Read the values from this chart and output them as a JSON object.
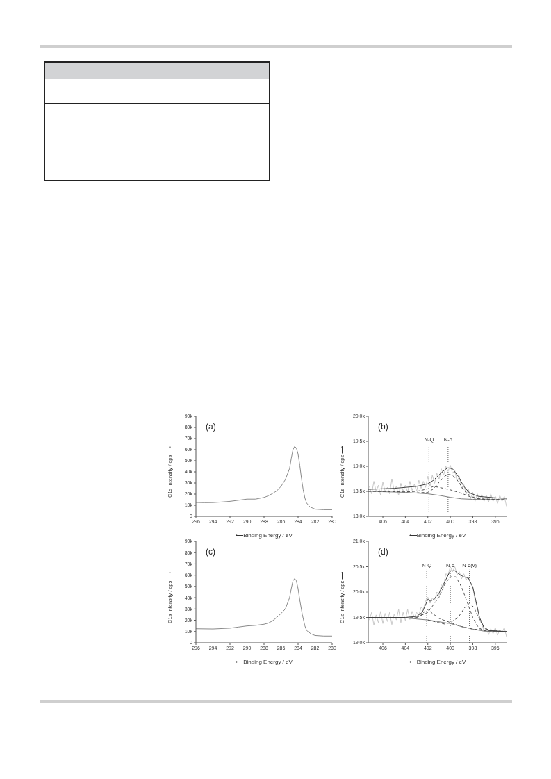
{
  "chart_data": [
    {
      "type": "line",
      "annotations": [
        "(a)"
      ],
      "xlabel": "⟵Binding Energy / eV",
      "ylabel": "C1s Intensity / cps ⟶",
      "xlim": [
        296,
        280
      ],
      "xticks": [
        296,
        294,
        292,
        290,
        288,
        286,
        284,
        282,
        280
      ],
      "ylim": [
        0,
        90000
      ],
      "yticks": [
        0,
        {
          "value": 10000,
          "label": "10k"
        },
        {
          "value": 20000,
          "label": "20k"
        },
        {
          "value": 30000,
          "label": "30k"
        },
        {
          "value": 40000,
          "label": "40k"
        },
        {
          "value": 50000,
          "label": "50k"
        },
        {
          "value": 60000,
          "label": "60k"
        },
        {
          "value": 70000,
          "label": "70k"
        },
        {
          "value": 80000,
          "label": "80k"
        },
        {
          "value": 90000,
          "label": "90k"
        }
      ],
      "grid": false,
      "legend": false,
      "marker": "none",
      "series": [
        {
          "color": "#8a8a8a",
          "line_style": "solid",
          "x": [
            296,
            295,
            294,
            293,
            292,
            291,
            290,
            289,
            288,
            287.5,
            287,
            286.5,
            286,
            285.5,
            285,
            284.8,
            284.6,
            284.4,
            284.2,
            284,
            283.8,
            283.6,
            283.4,
            283.2,
            283,
            282.6,
            282,
            281,
            280
          ],
          "values": [
            12500,
            12300,
            12400,
            12900,
            13500,
            14500,
            15500,
            15500,
            17000,
            18500,
            20500,
            23000,
            27000,
            33000,
            43000,
            52000,
            60000,
            63000,
            61500,
            56000,
            46000,
            34000,
            24000,
            16500,
            12000,
            8500,
            6500,
            6000,
            6000
          ]
        }
      ]
    },
    {
      "type": "line",
      "annotations": [
        "(b)"
      ],
      "xlabel": "⟵Binding Energy / eV",
      "ylabel": "C1s Intensity / cps ⟶",
      "xlim": [
        407.3,
        395
      ],
      "xticks": [
        406,
        404,
        402,
        400,
        398,
        396
      ],
      "ylim": [
        18000,
        20000
      ],
      "yticks": [
        {
          "value": 18000,
          "label": "18.0k"
        },
        {
          "value": 18500,
          "label": "18.5k"
        },
        {
          "value": 19000,
          "label": "19.0k"
        },
        {
          "value": 19500,
          "label": "19.5k"
        },
        {
          "value": 20000,
          "label": "20.0k"
        }
      ],
      "grid": false,
      "legend": false,
      "marker": "none",
      "ref_lines": [
        {
          "axis": "x",
          "value": 401.9,
          "label": "N-Q",
          "line_style": "dotted",
          "color": "#606060"
        },
        {
          "axis": "x",
          "value": 400.2,
          "label": "N-5",
          "line_style": "dotted",
          "color": "#606060"
        }
      ],
      "series": [
        {
          "color": "#c8c8c8",
          "line_style": "solid",
          "x": [
            407.2,
            407.0,
            406.8,
            406.6,
            406.4,
            406.2,
            406.0,
            405.8,
            405.6,
            405.4,
            405.2,
            405.0,
            404.8,
            404.6,
            404.4,
            404.2,
            404.0,
            403.8,
            403.6,
            403.4,
            403.2,
            403.0,
            402.8,
            402.6,
            402.4,
            402.2,
            402.0,
            401.8,
            401.6,
            401.4,
            401.2,
            401.0,
            400.8,
            400.6,
            400.4,
            400.2,
            400.0,
            399.8,
            399.6,
            399.4,
            399.2,
            399.0,
            398.8,
            398.6,
            398.4,
            398.2,
            398.0,
            397.8,
            397.6,
            397.4,
            397.2,
            397.0,
            396.8,
            396.6,
            396.4,
            396.2,
            396.0,
            395.8,
            395.6,
            395.4,
            395.2,
            395.0
          ],
          "values": [
            18600,
            18450,
            18700,
            18500,
            18620,
            18420,
            18680,
            18500,
            18580,
            18450,
            18750,
            18520,
            18600,
            18420,
            18660,
            18500,
            18620,
            18480,
            18700,
            18520,
            18640,
            18500,
            18720,
            18560,
            18700,
            18580,
            18800,
            18600,
            18820,
            18660,
            18860,
            18740,
            18950,
            18820,
            19000,
            18900,
            19020,
            18860,
            18920,
            18700,
            18800,
            18560,
            18640,
            18440,
            18550,
            18350,
            18480,
            18300,
            18450,
            18320,
            18440,
            18300,
            18420,
            18280,
            18450,
            18300,
            18400,
            18260,
            18420,
            18300,
            18400,
            18200
          ]
        },
        {
          "color": "#808080",
          "line_style": "solid",
          "x": [
            407.3,
            404,
            402,
            401,
            400,
            399,
            398,
            395
          ],
          "values": [
            18500,
            18480,
            18450,
            18420,
            18380,
            18350,
            18340,
            18330
          ]
        },
        {
          "color": "#505050",
          "line_style": "dashed",
          "x": [
            407.3,
            404,
            403,
            402,
            401.5,
            401,
            400,
            399,
            398,
            397,
            395
          ],
          "values": [
            18500,
            18490,
            18500,
            18550,
            18600,
            18580,
            18530,
            18460,
            18370,
            18340,
            18330
          ]
        },
        {
          "color": "#505050",
          "line_style": "dashed",
          "x": [
            403,
            402,
            401.5,
            401,
            400.5,
            400.2,
            399.8,
            399.3,
            398.8,
            398.2,
            397.5,
            396,
            395
          ],
          "values": [
            18470,
            18480,
            18550,
            18680,
            18800,
            18840,
            18820,
            18700,
            18520,
            18400,
            18350,
            18340,
            18330
          ]
        },
        {
          "color": "#404040",
          "line_style": "solid",
          "x": [
            407.3,
            405,
            403,
            402,
            401.5,
            401,
            400.5,
            400.2,
            399.8,
            399.3,
            398.8,
            398.3,
            397.5,
            396,
            395
          ],
          "values": [
            18540,
            18560,
            18600,
            18650,
            18720,
            18830,
            18930,
            18970,
            18950,
            18800,
            18600,
            18470,
            18400,
            18370,
            18360
          ]
        }
      ]
    },
    {
      "type": "line",
      "annotations": [
        "(c)"
      ],
      "xlabel": "⟵Binding Energy / eV",
      "ylabel": "C1s Intensity / cps ⟶",
      "xlim": [
        296,
        280
      ],
      "xticks": [
        296,
        294,
        292,
        290,
        288,
        286,
        284,
        282,
        280
      ],
      "ylim": [
        0,
        90000
      ],
      "yticks": [
        0,
        {
          "value": 10000,
          "label": "10k"
        },
        {
          "value": 20000,
          "label": "20k"
        },
        {
          "value": 30000,
          "label": "30k"
        },
        {
          "value": 40000,
          "label": "40k"
        },
        {
          "value": 50000,
          "label": "50k"
        },
        {
          "value": 60000,
          "label": "60k"
        },
        {
          "value": 70000,
          "label": "70k"
        },
        {
          "value": 80000,
          "label": "80k"
        },
        {
          "value": 90000,
          "label": "90k"
        }
      ],
      "grid": false,
      "legend": false,
      "marker": "none",
      "series": [
        {
          "color": "#8a8a8a",
          "line_style": "solid",
          "x": [
            296,
            294,
            292,
            291,
            290,
            289,
            288,
            287.5,
            287,
            286.5,
            286,
            285.5,
            285,
            284.8,
            284.6,
            284.4,
            284.2,
            284,
            283.8,
            283.5,
            283.2,
            283,
            282.5,
            282,
            281,
            280
          ],
          "values": [
            12500,
            12300,
            13000,
            14000,
            15000,
            15500,
            16500,
            17500,
            19500,
            22500,
            26000,
            30000,
            40000,
            48000,
            55000,
            57000,
            55000,
            48000,
            38000,
            25000,
            15000,
            11000,
            8000,
            6500,
            6000,
            6000
          ]
        }
      ]
    },
    {
      "type": "line",
      "annotations": [
        "(d)"
      ],
      "xlabel": "⟵Binding Energy / eV",
      "ylabel": "C1s Intensity / cps ⟶",
      "xlim": [
        407.3,
        395
      ],
      "xticks": [
        406,
        404,
        402,
        400,
        398,
        396
      ],
      "ylim": [
        19000,
        21000
      ],
      "yticks": [
        {
          "value": 19000,
          "label": "19.0k"
        },
        {
          "value": 19500,
          "label": "19.5k"
        },
        {
          "value": 20000,
          "label": "20.0k"
        },
        {
          "value": 20500,
          "label": "20.5k"
        },
        {
          "value": 21000,
          "label": "21.0k"
        }
      ],
      "grid": false,
      "legend": false,
      "marker": "none",
      "ref_lines": [
        {
          "axis": "x",
          "value": 402.1,
          "label": "N-Q",
          "line_style": "dotted",
          "color": "#606060"
        },
        {
          "axis": "x",
          "value": 400.0,
          "label": "N-5",
          "line_style": "dotted",
          "color": "#606060"
        },
        {
          "axis": "x",
          "value": 398.3,
          "label": "N-6(v)",
          "line_style": "dotted",
          "color": "#606060"
        }
      ],
      "series": [
        {
          "color": "#c8c8c8",
          "line_style": "solid",
          "x": [
            407.2,
            407.0,
            406.8,
            406.6,
            406.4,
            406.2,
            406.0,
            405.8,
            405.6,
            405.4,
            405.2,
            405.0,
            404.8,
            404.6,
            404.4,
            404.2,
            404.0,
            403.8,
            403.6,
            403.4,
            403.2,
            403.0,
            402.8,
            402.6,
            402.4,
            402.2,
            402.0,
            401.8,
            401.6,
            401.4,
            401.2,
            401.0,
            400.8,
            400.6,
            400.4,
            400.2,
            400.0,
            399.8,
            399.6,
            399.4,
            399.2,
            399.0,
            398.8,
            398.6,
            398.4,
            398.2,
            398.0,
            397.8,
            397.6,
            397.4,
            397.2,
            397.0,
            396.8,
            396.6,
            396.4,
            396.2,
            396.0,
            395.8,
            395.6,
            395.4,
            395.2,
            395.0
          ],
          "values": [
            19450,
            19600,
            19350,
            19550,
            19400,
            19620,
            19380,
            19580,
            19420,
            19600,
            19360,
            19560,
            19450,
            19660,
            19400,
            19600,
            19440,
            19660,
            19460,
            19620,
            19500,
            19600,
            19550,
            19700,
            19660,
            19820,
            19900,
            19780,
            19880,
            19840,
            20000,
            19940,
            20140,
            20120,
            20360,
            20340,
            20500,
            20400,
            20500,
            20340,
            20400,
            20260,
            20360,
            20240,
            20300,
            20160,
            20100,
            19840,
            19700,
            19450,
            19380,
            19220,
            19300,
            19160,
            19280,
            19180,
            19300,
            19150,
            19260,
            19200,
            19300,
            19120
          ]
        },
        {
          "color": "#808080",
          "line_style": "solid",
          "x": [
            407.3,
            404,
            402,
            400,
            399,
            398,
            397,
            396,
            395
          ],
          "values": [
            19500,
            19490,
            19450,
            19380,
            19320,
            19270,
            19230,
            19220,
            19220
          ]
        },
        {
          "color": "#505050",
          "line_style": "dashed",
          "x": [
            404,
            403,
            402.5,
            402.1,
            401.7,
            401,
            400,
            399,
            398,
            395
          ],
          "values": [
            19490,
            19500,
            19560,
            19670,
            19600,
            19480,
            19400,
            19320,
            19270,
            19220
          ]
        },
        {
          "color": "#505050",
          "line_style": "dashed",
          "x": [
            403,
            402,
            401,
            400.5,
            400,
            399.5,
            399,
            398.5,
            398,
            397.5,
            397,
            395
          ],
          "values": [
            19500,
            19600,
            19900,
            20150,
            20300,
            20300,
            20100,
            19800,
            19500,
            19300,
            19240,
            19220
          ]
        },
        {
          "color": "#505050",
          "line_style": "dashed",
          "x": [
            402,
            400.5,
            400,
            399.3,
            398.7,
            398.3,
            397.9,
            397.5,
            397,
            396.5,
            395
          ],
          "values": [
            19450,
            19370,
            19400,
            19500,
            19700,
            19780,
            19700,
            19500,
            19300,
            19240,
            19220
          ]
        },
        {
          "color": "#404040",
          "line_style": "solid",
          "x": [
            407.3,
            404,
            403,
            402.5,
            402.2,
            402,
            401.8,
            401.5,
            401,
            400.5,
            400,
            399.6,
            399.2,
            398.8,
            398.4,
            398,
            397.7,
            397.4,
            397,
            396.5,
            395
          ],
          "values": [
            19500,
            19500,
            19520,
            19600,
            19750,
            19860,
            19820,
            19850,
            19980,
            20200,
            20420,
            20420,
            20350,
            20300,
            20280,
            20100,
            19800,
            19500,
            19300,
            19240,
            19220
          ]
        }
      ]
    }
  ]
}
